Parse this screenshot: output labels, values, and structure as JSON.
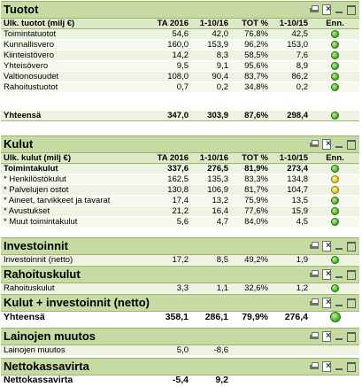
{
  "tuotot": {
    "title": "Tuotot",
    "headers": [
      "Ulk. tuotot (milj €)",
      "TA 2016",
      "1-10/16",
      "TOT %",
      "1-10/15",
      "Enn."
    ],
    "rows": [
      {
        "label": "Toimintatuotot",
        "ta": "54,6",
        "cur": "42,0",
        "tot": "76,8%",
        "prev": "42,5",
        "status": "green"
      },
      {
        "label": "Kunnallisvero",
        "ta": "160,0",
        "cur": "153,9",
        "tot": "96,2%",
        "prev": "153,0",
        "status": "green"
      },
      {
        "label": "Kiinteistövero",
        "ta": "14,2",
        "cur": "8,3",
        "tot": "58,5%",
        "prev": "7,6",
        "status": "green"
      },
      {
        "label": "Yhteisövero",
        "ta": "9,5",
        "cur": "9,1",
        "tot": "95,6%",
        "prev": "8,9",
        "status": "green"
      },
      {
        "label": "Valtionosuudet",
        "ta": "108,0",
        "cur": "90,4",
        "tot": "83,7%",
        "prev": "86,2",
        "status": "green"
      },
      {
        "label": "Rahoitustuotot",
        "ta": "0,7",
        "cur": "0,2",
        "tot": "34,8%",
        "prev": "0,2",
        "status": "green"
      }
    ],
    "total": {
      "label": "Yhteensä",
      "ta": "347,0",
      "cur": "303,9",
      "tot": "87,6%",
      "prev": "298,4",
      "status": "green"
    }
  },
  "kulut": {
    "title": "Kulut",
    "headers": [
      "Ulk. kulut (milj €)",
      "TA 2016",
      "1-10/16",
      "TOT %",
      "1-10/15",
      "Enn."
    ],
    "rows": [
      {
        "label": "Toimintakulut",
        "ta": "337,6",
        "cur": "276,5",
        "tot": "81,9%",
        "prev": "273,4",
        "status": "green",
        "bold": true
      },
      {
        "label": "* Henkilöstökulut",
        "ta": "162,5",
        "cur": "135,3",
        "tot": "83,3%",
        "prev": "134,8",
        "status": "yellow"
      },
      {
        "label": "* Palvelujen ostot",
        "ta": "130,8",
        "cur": "106,9",
        "tot": "81,7%",
        "prev": "104,7",
        "status": "yellow"
      },
      {
        "label": "* Aineet, tarvikkeet ja tavarat",
        "ta": "17,4",
        "cur": "13,2",
        "tot": "75,9%",
        "prev": "13,5",
        "status": "green"
      },
      {
        "label": "* Avustukset",
        "ta": "21,2",
        "cur": "16,4",
        "tot": "77,6%",
        "prev": "15,9",
        "status": "green"
      },
      {
        "label": "* Muut toimintakulut",
        "ta": "5,6",
        "cur": "4,7",
        "tot": "84,0%",
        "prev": "4,5",
        "status": "green"
      }
    ]
  },
  "investoinnit": {
    "title": "Investoinnit",
    "row": {
      "label": "Investoinnit (netto)",
      "ta": "17,2",
      "cur": "8,5",
      "tot": "49,2%",
      "prev": "1,9",
      "status": "green"
    }
  },
  "rahoituskulut": {
    "title": "Rahoituskulut",
    "row": {
      "label": "Rahoituskulut",
      "ta": "3,3",
      "cur": "1,1",
      "tot": "32,6%",
      "prev": "1,2",
      "status": "green"
    }
  },
  "kulut_inv": {
    "title": "Kulut + investoinnit (netto)",
    "row": {
      "label": "Yhteensä",
      "ta": "358,1",
      "cur": "286,1",
      "tot": "79,9%",
      "prev": "276,4",
      "status": "green"
    }
  },
  "lainat": {
    "title": "Lainojen muutos",
    "row": {
      "label": "Lainojen muutos",
      "ta": "5,0",
      "cur": "-8,6"
    }
  },
  "netto": {
    "title": "Nettokassavirta",
    "row": {
      "label": "Nettokassavirta",
      "ta": "-5,4",
      "cur": "9,2"
    }
  },
  "icons": [
    "print-icon",
    "excel-export-icon",
    "minimize-icon",
    "maximize-icon"
  ],
  "colors": {
    "title_bar": "#c6dba3",
    "header_row": "#dde8c6",
    "row": "#edf3e0",
    "status_green": "#3fa81e",
    "status_yellow": "#d9c21c"
  }
}
